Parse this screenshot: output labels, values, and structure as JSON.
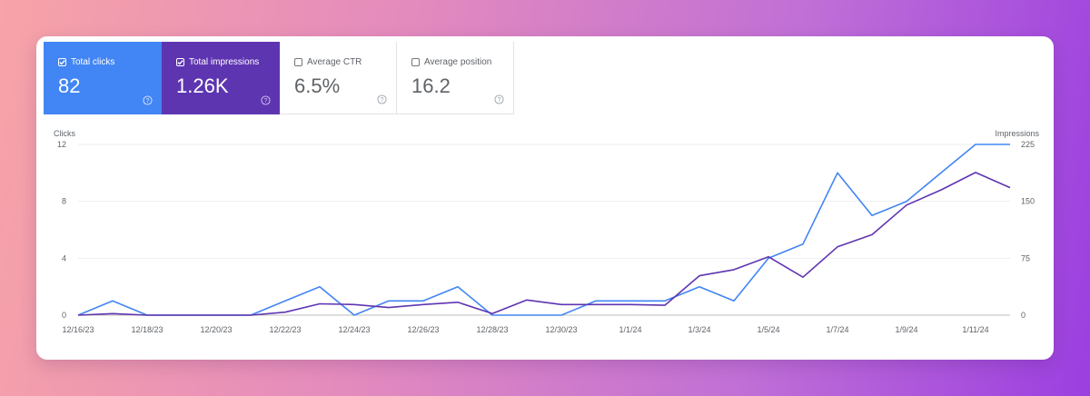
{
  "metrics": [
    {
      "label": "Total clicks",
      "value": "82",
      "checked": true
    },
    {
      "label": "Total impressions",
      "value": "1.26K",
      "checked": true
    },
    {
      "label": "Average CTR",
      "value": "6.5%",
      "checked": false
    },
    {
      "label": "Average position",
      "value": "16.2",
      "checked": false
    }
  ],
  "icons": {
    "help": "help-circle-icon",
    "checkbox": "checkbox-icon"
  },
  "colors": {
    "clicks": "#4285f4",
    "impressions": "#5e35b1",
    "background_start": "#f7a3a7",
    "background_end": "#9b3fe0"
  },
  "chart_data": {
    "type": "line",
    "x": [
      "12/16/23",
      "12/17/23",
      "12/18/23",
      "12/19/23",
      "12/20/23",
      "12/21/23",
      "12/22/23",
      "12/23/23",
      "12/24/23",
      "12/25/23",
      "12/26/23",
      "12/27/23",
      "12/28/23",
      "12/29/23",
      "12/30/23",
      "12/31/23",
      "1/1/24",
      "1/2/24",
      "1/3/24",
      "1/4/24",
      "1/5/24",
      "1/6/24",
      "1/7/24",
      "1/8/24",
      "1/9/24",
      "1/10/24",
      "1/11/24",
      "1/12/24"
    ],
    "x_ticks": [
      "12/16/23",
      "12/18/23",
      "12/20/23",
      "12/22/23",
      "12/24/23",
      "12/26/23",
      "12/28/23",
      "12/30/23",
      "1/1/24",
      "1/3/24",
      "1/5/24",
      "1/7/24",
      "1/9/24",
      "1/11/24"
    ],
    "left_axis": {
      "label": "Clicks",
      "ticks": [
        0,
        4,
        8,
        12
      ],
      "range": [
        0,
        12
      ]
    },
    "right_axis": {
      "label": "Impressions",
      "ticks": [
        0,
        75,
        150,
        225
      ],
      "range": [
        0,
        225
      ]
    },
    "grid": true,
    "series": [
      {
        "name": "Clicks",
        "axis": "left",
        "color": "#4285f4",
        "values": [
          0,
          1,
          0,
          0,
          0,
          0,
          1,
          2,
          0,
          1,
          1,
          2,
          0,
          0,
          0,
          1,
          1,
          1,
          2,
          1,
          4,
          5,
          10,
          7,
          8,
          10,
          12,
          12
        ]
      },
      {
        "name": "Impressions",
        "axis": "right",
        "color": "#5e35b1",
        "values": [
          0,
          2,
          0,
          0,
          0,
          0,
          4,
          15,
          14,
          10,
          14,
          17,
          2,
          20,
          14,
          14,
          14,
          13,
          52,
          60,
          77,
          50,
          90,
          106,
          145,
          165,
          188,
          168
        ]
      }
    ]
  }
}
